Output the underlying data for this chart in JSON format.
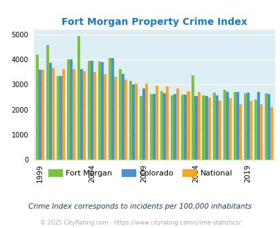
{
  "title": "Fort Morgan Property Crime Index",
  "years": [
    1999,
    2000,
    2001,
    2002,
    2003,
    2004,
    2005,
    2006,
    2007,
    2008,
    2009,
    2010,
    2011,
    2012,
    2013,
    2014,
    2015,
    2016,
    2017,
    2018,
    2019,
    2020,
    2021
  ],
  "fort_morgan": [
    4200,
    4580,
    3350,
    4020,
    4960,
    3960,
    3920,
    4070,
    3620,
    3150,
    2550,
    2630,
    2750,
    2560,
    2600,
    3360,
    2560,
    2670,
    2790,
    2720,
    2650,
    2400,
    2650
  ],
  "colorado": [
    3600,
    3870,
    3340,
    4000,
    3620,
    3950,
    3910,
    4060,
    3430,
    3010,
    2860,
    2640,
    2650,
    2620,
    2590,
    2530,
    2540,
    2570,
    2710,
    2720,
    2680,
    2700,
    2620
  ],
  "national": [
    3600,
    3680,
    3620,
    3610,
    3540,
    3510,
    3430,
    3330,
    3210,
    3040,
    3050,
    2960,
    2940,
    2860,
    2730,
    2700,
    2490,
    2360,
    2450,
    2200,
    2360,
    2200,
    2110
  ],
  "fort_morgan_color": "#7bc142",
  "colorado_color": "#4d91d4",
  "national_color": "#f5a623",
  "background_color": "#ddeef5",
  "fig_background": "#ffffff",
  "ylabel_ticks": [
    0,
    1000,
    2000,
    3000,
    4000,
    5000
  ],
  "xtick_years": [
    1999,
    2004,
    2009,
    2014,
    2019
  ],
  "subtitle": "Crime Index corresponds to incidents per 100,000 inhabitants",
  "footer": "© 2025 CityRating.com - https://www.cityrating.com/crime-statistics/",
  "bar_width": 0.27,
  "title_color": "#1a7abf",
  "subtitle_color": "#1a3a5c",
  "footer_color": "#aaaaaa"
}
